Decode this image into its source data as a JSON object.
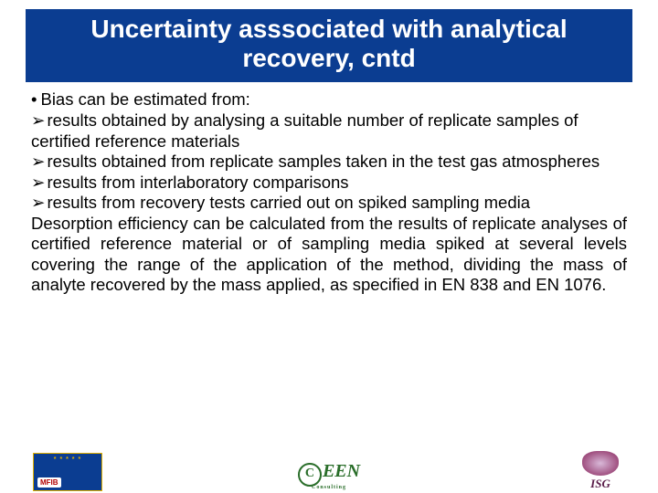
{
  "title": "Uncertainty asssociated with analytical recovery, cntd",
  "lines": {
    "intro": "Bias can be estimated from:",
    "a1": "results obtained by analysing a suitable number of replicate samples of certified reference materials",
    "a2": "results obtained from replicate samples taken in the test gas atmospheres",
    "a3": "results from interlaboratory comparisons",
    "a4": "results from recovery tests carried out on spiked sampling media",
    "desorp": "Desorption efficiency can be calculated from the results of replicate analyses of certified reference material or of sampling media spiked at several levels covering the range of the application of the method, dividing the mass of analyte recovered by the mass applied, as specified in EN 838 and EN 1076."
  },
  "colors": {
    "title_bg": "#0b3d91",
    "title_fg": "#ffffff",
    "text": "#000000"
  },
  "logos": {
    "left": "MFIB",
    "center": "EEN",
    "right": "ISG"
  }
}
